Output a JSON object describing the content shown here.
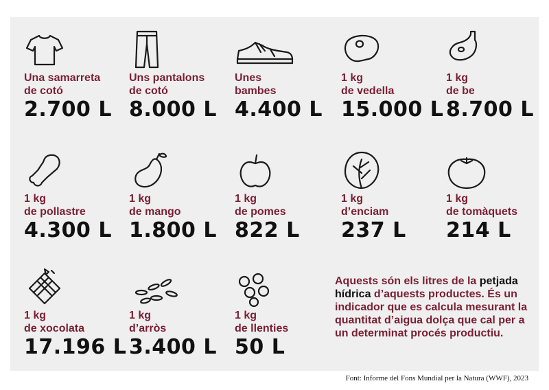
{
  "items": [
    {
      "icon": "t-shirt-icon",
      "line1": "Una samarreta",
      "line2": "de cotó",
      "value": "2.700 L"
    },
    {
      "icon": "trousers-icon",
      "line1": "Uns pantalons",
      "line2": "de cotó",
      "value": "8.000 L"
    },
    {
      "icon": "sneaker-icon",
      "line1": "Unes",
      "line2": "bambes",
      "value": "4.400 L"
    },
    {
      "icon": "steak-icon",
      "line1": "1 kg",
      "line2": "de vedella",
      "value": "15.000 L"
    },
    {
      "icon": "lamb-chop-icon",
      "line1": "1 kg",
      "line2": "de be",
      "value": "8.700 L"
    },
    {
      "icon": "chicken-leg-icon",
      "line1": "1 kg",
      "line2": "de pollastre",
      "value": "4.300 L"
    },
    {
      "icon": "mango-icon",
      "line1": "1 kg",
      "line2": "de mango",
      "value": "1.800 L"
    },
    {
      "icon": "apple-icon",
      "line1": "1 kg",
      "line2": "de pomes",
      "value": "822 L"
    },
    {
      "icon": "lettuce-icon",
      "line1": "1 kg",
      "line2": "d’enciam",
      "value": "237 L"
    },
    {
      "icon": "tomato-icon",
      "line1": "1 kg",
      "line2": "de tomàquets",
      "value": "214 L"
    },
    {
      "icon": "chocolate-icon",
      "line1": "1 kg",
      "line2": "de xocolata",
      "value": "17.196 L"
    },
    {
      "icon": "rice-icon",
      "line1": "1 kg",
      "line2": "d’arròs",
      "value": "3.400 L"
    },
    {
      "icon": "lentils-icon",
      "line1": "1 kg",
      "line2": "de llenties",
      "value": "50 L"
    }
  ],
  "note": {
    "part1": "Aquests són els litres de la ",
    "emphasis": "petjada hídrica",
    "part2": " d’aquests productes. És un indicador que es calcula mesurant la quantitat d’aigua dolça que cal per a un determinat procés productiu."
  },
  "source": "Font: Informe del Fons Mundial per la Natura (WWF), 2023",
  "colors": {
    "label": "#7a1f33",
    "value": "#111111",
    "panel": "#efefef"
  }
}
